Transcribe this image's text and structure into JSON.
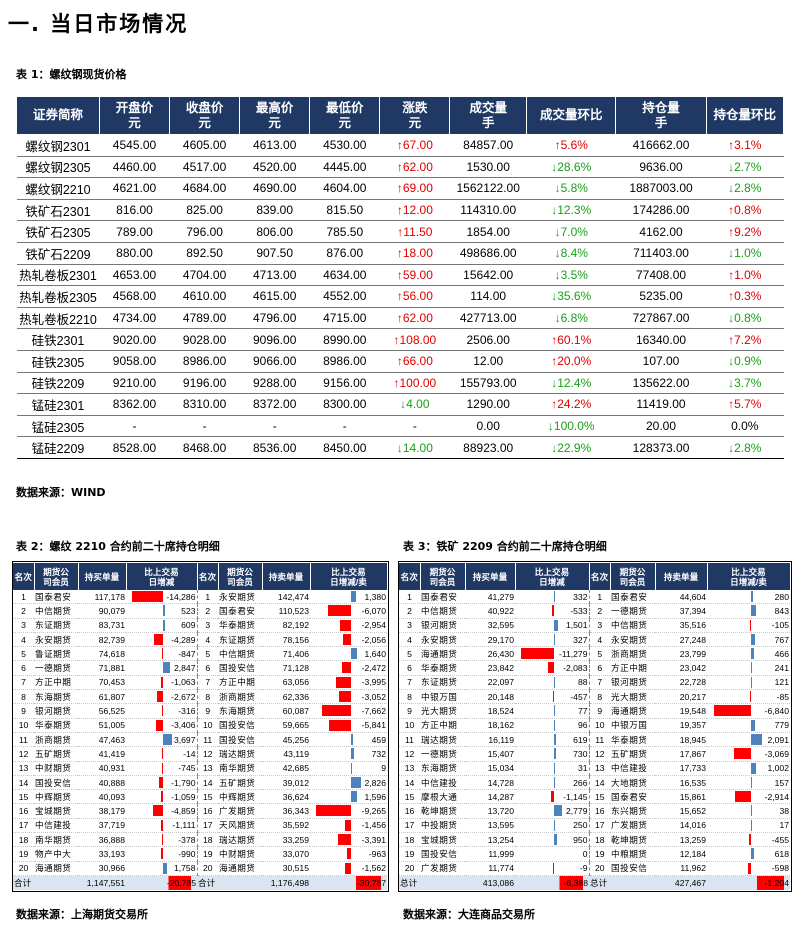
{
  "heading": "一.  当日市场情况",
  "t1": {
    "caption": "表 1：螺纹钢现货价格",
    "headers": [
      "证券简称",
      "开盘价\n元",
      "收盘价\n元",
      "最高价\n元",
      "最低价\n元",
      "涨跌\n元",
      "成交量\n手",
      "成交量环比",
      "持仓量\n手",
      "持仓量环比"
    ],
    "rows": [
      [
        "螺纹钢2301",
        "4545.00",
        "4605.00",
        "4613.00",
        "4530.00",
        "↑67.00",
        "84857.00",
        "↑5.6%",
        "416662.00",
        "↑3.1%"
      ],
      [
        "螺纹钢2305",
        "4460.00",
        "4517.00",
        "4520.00",
        "4445.00",
        "↑62.00",
        "1530.00",
        "↓28.6%",
        "9636.00",
        "↓2.7%"
      ],
      [
        "螺纹钢2210",
        "4621.00",
        "4684.00",
        "4690.00",
        "4604.00",
        "↑69.00",
        "1562122.00",
        "↓5.8%",
        "1887003.00",
        "↓2.8%"
      ],
      [
        "铁矿石2301",
        "816.00",
        "825.00",
        "839.00",
        "815.50",
        "↑12.00",
        "114310.00",
        "↓12.3%",
        "174286.00",
        "↑0.8%"
      ],
      [
        "铁矿石2305",
        "789.00",
        "796.00",
        "806.00",
        "785.50",
        "↑11.50",
        "1854.00",
        "↓7.0%",
        "4162.00",
        "↑9.2%"
      ],
      [
        "铁矿石2209",
        "880.00",
        "892.50",
        "907.50",
        "876.00",
        "↑18.00",
        "498686.00",
        "↓8.4%",
        "711403.00",
        "↓1.0%"
      ],
      [
        "热轧卷板2301",
        "4653.00",
        "4704.00",
        "4713.00",
        "4634.00",
        "↑59.00",
        "15642.00",
        "↓3.5%",
        "77408.00",
        "↑1.0%"
      ],
      [
        "热轧卷板2305",
        "4568.00",
        "4610.00",
        "4615.00",
        "4552.00",
        "↑56.00",
        "114.00",
        "↓35.6%",
        "5235.00",
        "↑0.3%"
      ],
      [
        "热轧卷板2210",
        "4734.00",
        "4789.00",
        "4796.00",
        "4715.00",
        "↑62.00",
        "427713.00",
        "↓6.8%",
        "727867.00",
        "↓0.8%"
      ],
      [
        "硅铁2301",
        "9020.00",
        "9028.00",
        "9096.00",
        "8990.00",
        "↑108.00",
        "2506.00",
        "↑60.1%",
        "16340.00",
        "↑7.2%"
      ],
      [
        "硅铁2305",
        "9058.00",
        "8986.00",
        "9066.00",
        "8986.00",
        "↑66.00",
        "12.00",
        "↑20.0%",
        "107.00",
        "↓0.9%"
      ],
      [
        "硅铁2209",
        "9210.00",
        "9196.00",
        "9288.00",
        "9156.00",
        "↑100.00",
        "155793.00",
        "↓12.4%",
        "135622.00",
        "↓3.7%"
      ],
      [
        "锰硅2301",
        "8362.00",
        "8310.00",
        "8372.00",
        "8300.00",
        "↓4.00",
        "1290.00",
        "↑24.2%",
        "11419.00",
        "↑5.7%"
      ],
      [
        "锰硅2305",
        "-",
        "-",
        "-",
        "-",
        "-",
        "0.00",
        "↓100.0%",
        "20.00",
        "0.0%"
      ],
      [
        "锰硅2209",
        "8528.00",
        "8468.00",
        "8536.00",
        "8450.00",
        "↓14.00",
        "88923.00",
        "↓22.9%",
        "128373.00",
        "↓2.8%"
      ]
    ],
    "source": "数据来源：WIND"
  },
  "t2": {
    "caption": "表 2：螺纹 2210 合约前二十席持仓明细",
    "headers": [
      "名次",
      "期货公\n司会员",
      "持买单量",
      "比上交易\n日增减",
      "名次",
      "期货公\n司会员",
      "持卖单量",
      "比上交易\n日增减/卖"
    ],
    "rows": [
      [
        "1",
        "国泰君安",
        "117,178",
        "-14,286",
        "1",
        "永安期货",
        "142,474",
        "1,380"
      ],
      [
        "2",
        "中信期货",
        "90,079",
        "523",
        "2",
        "国泰君安",
        "110,523",
        "-6,070"
      ],
      [
        "3",
        "东证期货",
        "83,731",
        "609",
        "3",
        "华泰期货",
        "82,192",
        "-2,954"
      ],
      [
        "4",
        "永安期货",
        "82,739",
        "-4,289",
        "4",
        "东证期货",
        "78,156",
        "-2,056"
      ],
      [
        "5",
        "鲁证期货",
        "74,618",
        "-847",
        "5",
        "中信期货",
        "71,406",
        "1,640"
      ],
      [
        "6",
        "一德期货",
        "71,881",
        "2,847",
        "6",
        "国投安信",
        "71,128",
        "-2,472"
      ],
      [
        "7",
        "方正中期",
        "70,453",
        "-1,063",
        "7",
        "方正中期",
        "63,056",
        "-3,995"
      ],
      [
        "8",
        "东海期货",
        "61,807",
        "-2,672",
        "8",
        "浙商期货",
        "62,336",
        "-3,052"
      ],
      [
        "9",
        "银河期货",
        "56,525",
        "-316",
        "9",
        "东海期货",
        "60,087",
        "-7,662"
      ],
      [
        "10",
        "华泰期货",
        "51,005",
        "-3,406",
        "10",
        "国投安信",
        "59,665",
        "-5,841"
      ],
      [
        "11",
        "浙商期货",
        "47,463",
        "3,697",
        "11",
        "国投安信",
        "45,256",
        "459"
      ],
      [
        "12",
        "五矿期货",
        "41,419",
        "-14",
        "12",
        "瑞达期货",
        "43,119",
        "732"
      ],
      [
        "13",
        "中财期货",
        "40,931",
        "-745",
        "13",
        "南华期货",
        "42,685",
        "9"
      ],
      [
        "14",
        "国投安信",
        "40,888",
        "-1,790",
        "14",
        "五矿期货",
        "39,012",
        "2,826"
      ],
      [
        "15",
        "中辉期货",
        "40,093",
        "-1,059",
        "15",
        "中辉期货",
        "36,624",
        "1,596"
      ],
      [
        "16",
        "宝城期货",
        "38,179",
        "-4,859",
        "16",
        "广发期货",
        "36,343",
        "-9,265"
      ],
      [
        "17",
        "中信建投",
        "37,719",
        "-1,111",
        "17",
        "天风期货",
        "35,592",
        "-1,456"
      ],
      [
        "18",
        "南华期货",
        "36,888",
        "-378",
        "18",
        "瑞达期货",
        "33,259",
        "-3,391"
      ],
      [
        "19",
        "物产中大",
        "33,193",
        "-990",
        "19",
        "中财期货",
        "33,070",
        "-963"
      ],
      [
        "20",
        "海通期货",
        "30,966",
        "1,758",
        "20",
        "海通期货",
        "30,515",
        "-1,562"
      ]
    ],
    "total": [
      "合计",
      "1,147,551",
      "-20,785",
      "合计",
      "1,176,498",
      "-30,787"
    ],
    "bars_left": [
      -14286,
      523,
      609,
      -4289,
      -847,
      2847,
      -1063,
      -2672,
      -316,
      -3406,
      3697,
      -14,
      -745,
      -1790,
      -1059,
      -4859,
      -1111,
      -378,
      -990,
      1758
    ],
    "bars_right": [
      1380,
      -6070,
      -2954,
      -2056,
      1640,
      -2472,
      -3995,
      -3052,
      -7662,
      -5841,
      459,
      732,
      9,
      2826,
      1596,
      -9265,
      -1456,
      -3391,
      -963,
      -1562
    ],
    "source": "数据来源：上海期货交易所"
  },
  "t3": {
    "caption": "表 3：铁矿 2209 合约前二十席持仓明细",
    "headers": [
      "名次",
      "期货公\n司会员",
      "持买单量",
      "比上交易\n日增减",
      "名次",
      "期货公\n司会员",
      "持卖单量",
      "比上交易\n日增减/卖"
    ],
    "rows": [
      [
        "1",
        "国泰君安",
        "41,279",
        "332",
        "1",
        "国泰君安",
        "44,604",
        "280"
      ],
      [
        "2",
        "中信期货",
        "40,922",
        "-533",
        "2",
        "一德期货",
        "37,394",
        "843"
      ],
      [
        "3",
        "银河期货",
        "32,595",
        "1,501",
        "3",
        "中信期货",
        "35,516",
        "-105"
      ],
      [
        "4",
        "永安期货",
        "29,170",
        "327",
        "4",
        "永安期货",
        "27,248",
        "767"
      ],
      [
        "5",
        "海通期货",
        "26,430",
        "-11,279",
        "5",
        "浙商期货",
        "23,799",
        "466"
      ],
      [
        "6",
        "华泰期货",
        "23,842",
        "-2,083",
        "6",
        "方正中期",
        "23,042",
        "241"
      ],
      [
        "7",
        "东证期货",
        "22,097",
        "88",
        "7",
        "银河期货",
        "22,728",
        "121"
      ],
      [
        "8",
        "中银万国",
        "20,148",
        "-457",
        "8",
        "光大期货",
        "20,217",
        "-85"
      ],
      [
        "9",
        "光大期货",
        "18,524",
        "77",
        "9",
        "海通期货",
        "19,548",
        "-6,840"
      ],
      [
        "10",
        "方正中期",
        "18,162",
        "96",
        "10",
        "中银万国",
        "19,357",
        "779"
      ],
      [
        "11",
        "瑞达期货",
        "16,119",
        "619",
        "11",
        "华泰期货",
        "18,945",
        "2,091"
      ],
      [
        "12",
        "一德期货",
        "15,407",
        "730",
        "12",
        "五矿期货",
        "17,867",
        "-3,069"
      ],
      [
        "13",
        "东海期货",
        "15,034",
        "31",
        "13",
        "中信建投",
        "17,733",
        "1,002"
      ],
      [
        "14",
        "中信建投",
        "14,728",
        "266",
        "14",
        "大地期货",
        "16,535",
        "157"
      ],
      [
        "15",
        "摩根大通",
        "14,287",
        "-1,145",
        "15",
        "国泰君安",
        "15,861",
        "-2,914"
      ],
      [
        "16",
        "乾坤期货",
        "13,720",
        "2,779",
        "16",
        "东兴期货",
        "15,652",
        "38"
      ],
      [
        "17",
        "中投期货",
        "13,595",
        "250",
        "17",
        "广发期货",
        "14,016",
        "17"
      ],
      [
        "18",
        "宝城期货",
        "13,254",
        "950",
        "18",
        "乾坤期货",
        "13,259",
        "-455"
      ],
      [
        "19",
        "国投安信",
        "11,999",
        "0",
        "19",
        "中粮期货",
        "12,184",
        "618"
      ],
      [
        "20",
        "广发期货",
        "11,774",
        "-9",
        "20",
        "国投安信",
        "11,962",
        "-598"
      ]
    ],
    "total": [
      "总计",
      "413,086",
      "-6,388",
      "总计",
      "427,467",
      "-1,204"
    ],
    "bars_left": [
      332,
      -533,
      1501,
      327,
      -11279,
      -2083,
      88,
      -457,
      77,
      96,
      619,
      730,
      31,
      266,
      -1145,
      2779,
      250,
      950,
      0,
      -9
    ],
    "bars_right": [
      280,
      843,
      -105,
      767,
      466,
      241,
      121,
      -85,
      -6840,
      779,
      2091,
      -3069,
      1002,
      157,
      -2914,
      38,
      17,
      -455,
      618,
      -598
    ],
    "source": "数据来源：大连商品交易所"
  },
  "colors": {
    "header_bg": "#1f3864",
    "up": "#e00000",
    "down": "#18a018",
    "bar_neg": "#ff0000",
    "bar_pos": "#4f81bd",
    "total_bg": "#dbe5f1"
  }
}
